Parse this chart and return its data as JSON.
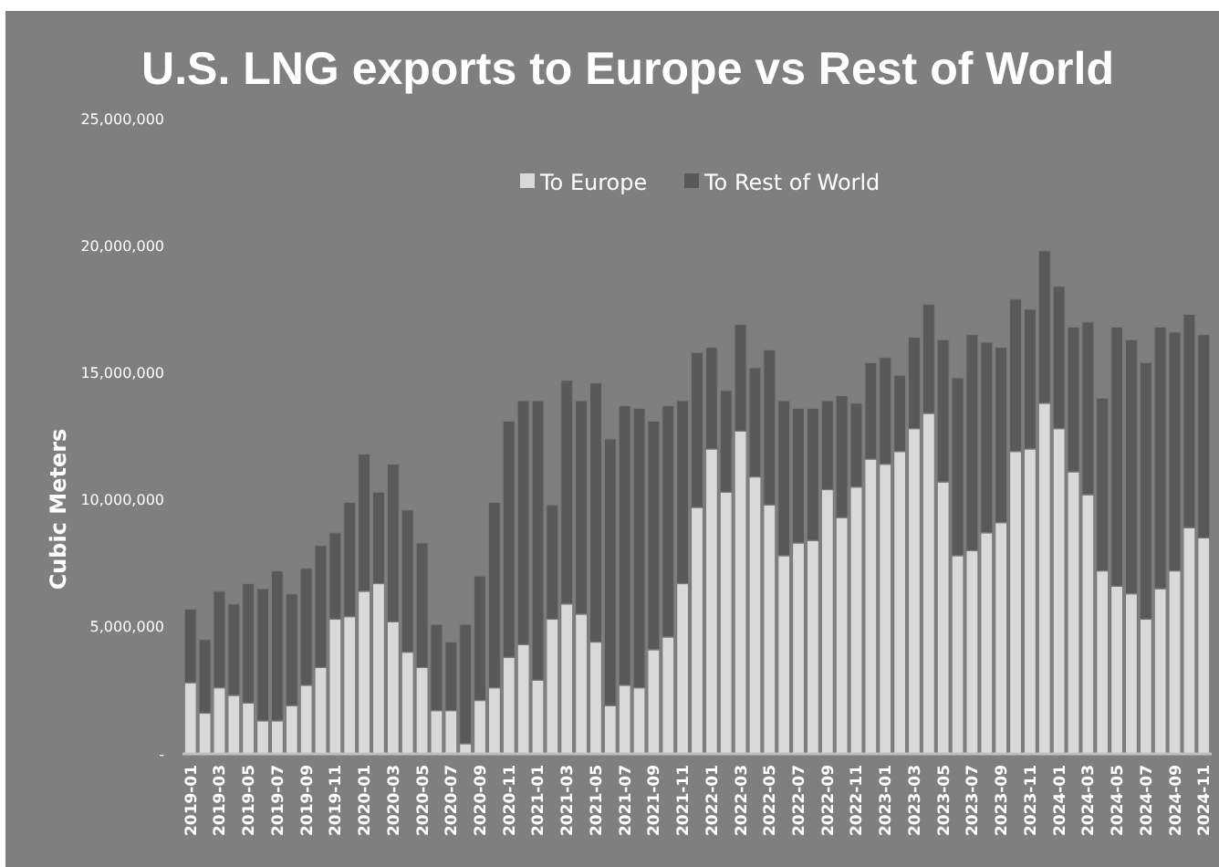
{
  "chart_data": {
    "type": "bar",
    "stacked": true,
    "title": "U.S. LNG exports to Europe vs Rest of World",
    "ylabel": "Cubic Meters",
    "categories": [
      "2019-01",
      null,
      "2019-03",
      null,
      "2019-05",
      null,
      "2019-07",
      null,
      "2019-09",
      null,
      "2019-11",
      null,
      "2020-01",
      null,
      "2020-03",
      null,
      "2020-05",
      null,
      "2020-07",
      null,
      "2020-09",
      null,
      "2020-11",
      null,
      "2021-01",
      null,
      "2021-03",
      null,
      "2021-05",
      null,
      "2021-07",
      null,
      "2021-09",
      null,
      "2021-11",
      null,
      "2022-01",
      null,
      "2022-03",
      null,
      "2022-05",
      null,
      "2022-07",
      null,
      "2022-09",
      null,
      "2022-11",
      null,
      "2023-01",
      null,
      "2023-03",
      null,
      "2023-05",
      null,
      "2023-07",
      null,
      "2023-09",
      null,
      "2023-11",
      null,
      "2024-01",
      null,
      "2024-03",
      null,
      "2024-05",
      null,
      "2024-07",
      null,
      "2024-09",
      null,
      "2024-11"
    ],
    "series": [
      {
        "name": "To Europe",
        "color": "#d9d9d9",
        "values": [
          2800000,
          1600000,
          2600000,
          2300000,
          2000000,
          1300000,
          1300000,
          1900000,
          2700000,
          3400000,
          5300000,
          5400000,
          6400000,
          6700000,
          5200000,
          4000000,
          3400000,
          1700000,
          1700000,
          400000,
          2100000,
          2600000,
          3800000,
          4300000,
          2900000,
          5300000,
          5900000,
          5500000,
          4400000,
          1900000,
          2700000,
          2600000,
          4100000,
          4600000,
          6700000,
          9700000,
          12000000,
          10300000,
          12700000,
          10900000,
          9800000,
          7800000,
          8300000,
          8400000,
          10400000,
          9300000,
          10500000,
          11600000,
          11400000,
          11900000,
          12800000,
          13400000,
          10700000,
          7800000,
          8000000,
          8700000,
          9100000,
          11900000,
          12000000,
          13800000,
          12800000,
          11100000,
          10200000,
          7200000,
          6600000,
          6300000,
          5300000,
          6500000,
          7200000,
          8900000,
          8500000
        ]
      },
      {
        "name": "To Rest of World",
        "color": "#595959",
        "values": [
          2900000,
          2900000,
          3800000,
          3600000,
          4700000,
          5200000,
          5900000,
          4400000,
          4600000,
          4800000,
          3400000,
          4500000,
          5400000,
          3600000,
          6200000,
          5600000,
          4900000,
          3400000,
          2700000,
          4700000,
          4900000,
          7300000,
          9300000,
          9600000,
          11000000,
          4500000,
          8800000,
          8400000,
          10200000,
          10500000,
          11000000,
          11000000,
          9000000,
          9100000,
          7200000,
          6100000,
          4000000,
          4000000,
          4200000,
          4300000,
          6100000,
          6100000,
          5300000,
          5200000,
          3500000,
          4800000,
          3300000,
          3800000,
          4200000,
          3000000,
          3600000,
          4300000,
          5600000,
          7000000,
          8500000,
          7500000,
          6900000,
          6000000,
          5500000,
          6000000,
          5600000,
          5700000,
          6800000,
          6800000,
          10200000,
          10000000,
          10100000,
          10300000,
          9400000,
          8400000,
          8000000
        ]
      }
    ],
    "ylim": [
      0,
      25000000
    ],
    "yticks": [
      {
        "value": 0,
        "label": "-"
      },
      {
        "value": 5000000,
        "label": "5,000,000"
      },
      {
        "value": 10000000,
        "label": "10,000,000"
      },
      {
        "value": 15000000,
        "label": "15,000,000"
      },
      {
        "value": 20000000,
        "label": "20,000,000"
      },
      {
        "value": 25000000,
        "label": "25,000,000"
      }
    ],
    "legend": "top",
    "grid": false
  }
}
